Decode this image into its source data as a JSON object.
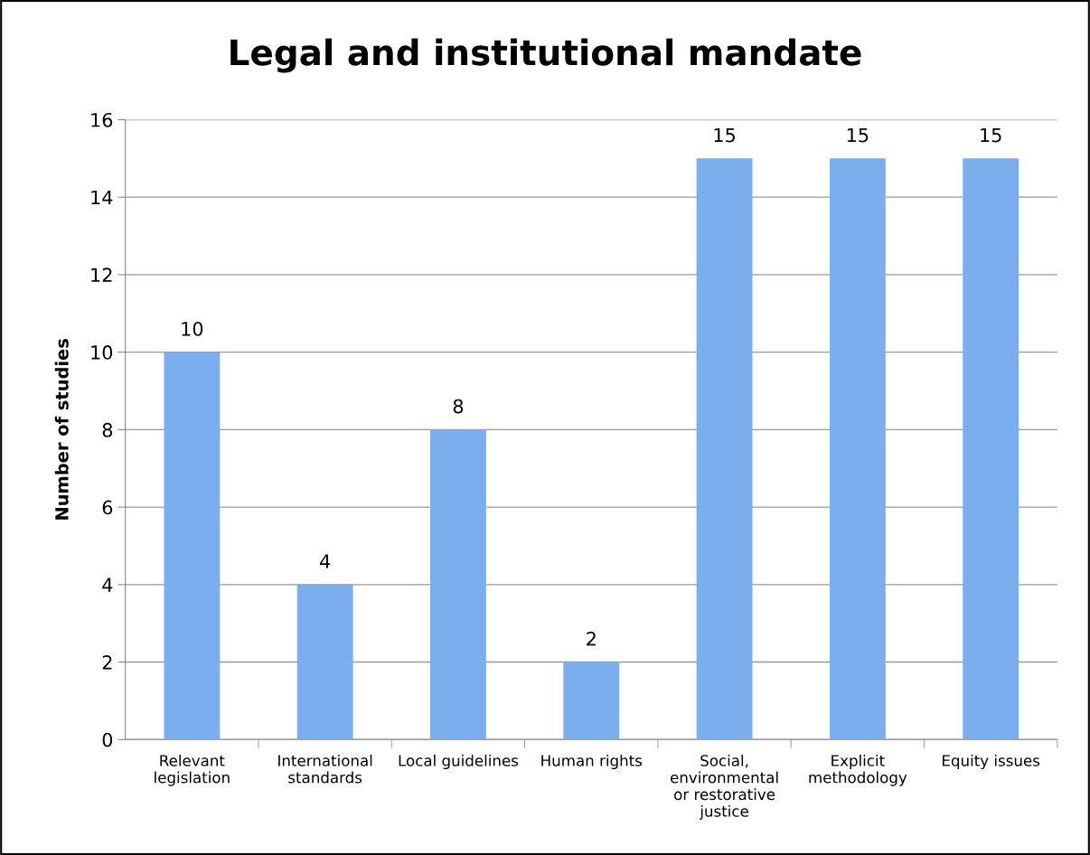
{
  "chart_data": {
    "type": "bar",
    "title": "Legal and institutional mandate",
    "ylabel": "Number of studies",
    "categories": [
      "Relevant\nlegislation",
      "International\nstandards",
      "Local guidelines",
      "Human rights",
      "Social,\nenvironmental\nor restorative\njustice",
      "Explicit\nmethodology",
      "Equity issues"
    ],
    "values": [
      10,
      4,
      8,
      2,
      15,
      15,
      15
    ],
    "color": "#7aaeee",
    "ylim": [
      0,
      16
    ],
    "yticks": [
      0,
      2,
      4,
      6,
      8,
      10,
      12,
      14,
      16
    ],
    "grid": "y",
    "data_labels": true,
    "legend": false
  }
}
